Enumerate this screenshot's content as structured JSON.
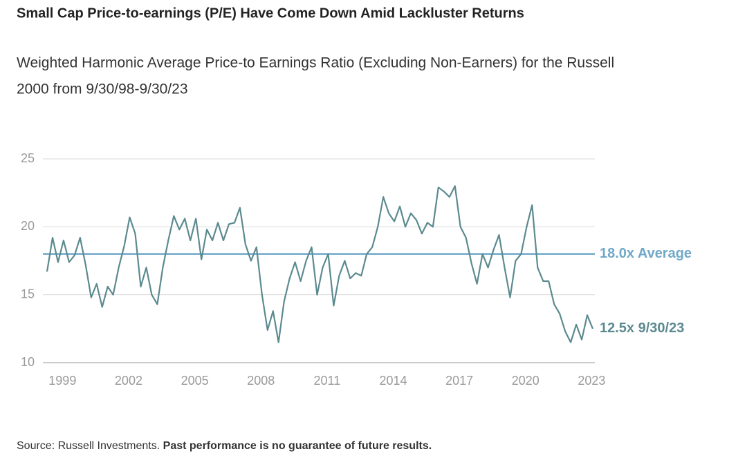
{
  "chart_data": {
    "type": "line",
    "title": "Small Cap Price-to-earnings (P/E) Have Come Down Amid Lackluster Returns",
    "subtitle_lines": [
      "Weighted Harmonic Average Price-to Earnings Ratio (Excluding Non-Earners) for the Russell",
      "2000 from 9/30/98-9/30/23"
    ],
    "x": [
      1998.3,
      1998.55,
      1998.8,
      1999.05,
      1999.3,
      1999.55,
      1999.8,
      2000.05,
      2000.3,
      2000.55,
      2000.8,
      2001.05,
      2001.3,
      2001.55,
      2001.8,
      2002.05,
      2002.3,
      2002.55,
      2002.8,
      2003.05,
      2003.3,
      2003.55,
      2003.8,
      2004.05,
      2004.3,
      2004.55,
      2004.8,
      2005.05,
      2005.3,
      2005.55,
      2005.8,
      2006.05,
      2006.3,
      2006.55,
      2006.8,
      2007.05,
      2007.3,
      2007.55,
      2007.8,
      2008.05,
      2008.3,
      2008.55,
      2008.8,
      2009.05,
      2009.3,
      2009.55,
      2009.8,
      2010.05,
      2010.3,
      2010.55,
      2010.8,
      2011.05,
      2011.3,
      2011.55,
      2011.8,
      2012.05,
      2012.3,
      2012.55,
      2012.8,
      2013.05,
      2013.3,
      2013.55,
      2013.8,
      2014.05,
      2014.3,
      2014.55,
      2014.8,
      2015.05,
      2015.3,
      2015.55,
      2015.8,
      2016.05,
      2016.3,
      2016.55,
      2016.8,
      2017.05,
      2017.3,
      2017.55,
      2017.8,
      2018.05,
      2018.3,
      2018.55,
      2018.8,
      2019.05,
      2019.3,
      2019.55,
      2019.8,
      2020.05,
      2020.3,
      2020.55,
      2020.8,
      2021.05,
      2021.3,
      2021.55,
      2021.8,
      2022.05,
      2022.3,
      2022.55,
      2022.8,
      2023.05
    ],
    "series": [
      {
        "name": "Russell 2000 P/E",
        "color": "#5b8a8f",
        "values": [
          16.7,
          19.2,
          17.4,
          19.0,
          17.4,
          17.9,
          19.2,
          17.2,
          14.8,
          15.8,
          14.1,
          15.6,
          15.0,
          17.0,
          18.6,
          20.7,
          19.5,
          15.6,
          17.0,
          15.0,
          14.3,
          17.0,
          19.0,
          20.8,
          19.8,
          20.6,
          19.0,
          20.6,
          17.6,
          19.8,
          19.0,
          20.3,
          19.0,
          20.2,
          20.3,
          21.4,
          18.7,
          17.5,
          18.5,
          15.0,
          12.4,
          13.8,
          11.5,
          14.5,
          16.2,
          17.4,
          16.0,
          17.5,
          18.5,
          15.0,
          17.0,
          18.0,
          14.2,
          16.4,
          17.5,
          16.2,
          16.6,
          16.4,
          18.0,
          18.5,
          20.0,
          22.2,
          21.0,
          20.4,
          21.5,
          20.0,
          21.0,
          20.5,
          19.5,
          20.3,
          20.0,
          22.9,
          22.6,
          22.2,
          23.0,
          20.0,
          19.2,
          17.3,
          15.8,
          18.0,
          17.0,
          18.3,
          19.4,
          17.0,
          14.8,
          17.5,
          18.0,
          20.0,
          21.6,
          17.0,
          16.0,
          16.0,
          14.3,
          13.6,
          12.3,
          11.5,
          12.8,
          11.7,
          13.5,
          12.5
        ]
      }
    ],
    "average": 18.0,
    "average_color": "#6fa8c8",
    "average_label": "18.0x Average",
    "end_label": "12.5x 9/30/23",
    "xlim": [
      1998.3,
      2023.05
    ],
    "xticks": [
      1999,
      2002,
      2005,
      2008,
      2011,
      2014,
      2017,
      2020,
      2023
    ],
    "ylim": [
      10,
      25
    ],
    "yticks": [
      10,
      15,
      20,
      25
    ],
    "grid": true,
    "source": "Source: Russell Investments.",
    "disclaimer": "Past performance is no guarantee of future results."
  }
}
